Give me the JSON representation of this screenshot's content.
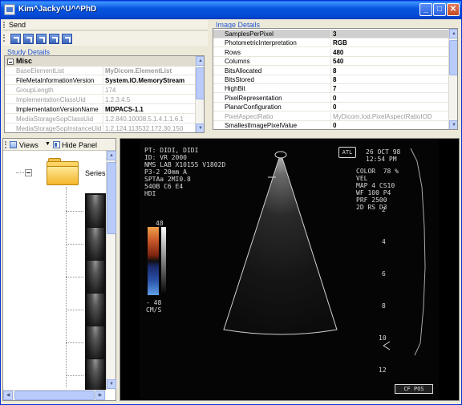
{
  "window": {
    "title": "Kim^Jacky^U^^PhD",
    "min_icon": "minimize-icon",
    "max_icon": "maximize-icon",
    "close_icon": "close-icon"
  },
  "toolbar": {
    "send_label": "Send",
    "icon_count": 5
  },
  "study_details": {
    "label": "Study Details",
    "category": "Misc",
    "rows": [
      {
        "name": "BaseElementList",
        "value": "MyDicom.ElementList",
        "name_style": "gray",
        "value_style": "gray-bold"
      },
      {
        "name": "FileMetaInformationVersion",
        "value": "System.IO.MemoryStream",
        "name_style": "normal",
        "value_style": "bold"
      },
      {
        "name": "GroupLength",
        "value": "174",
        "name_style": "gray",
        "value_style": "gray"
      },
      {
        "name": "ImplementationClassUid",
        "value": "1.2.3.4.5",
        "name_style": "gray",
        "value_style": "gray"
      },
      {
        "name": "ImplementationVersionName",
        "value": "MDPACS-1.1",
        "name_style": "normal",
        "value_style": "bold"
      },
      {
        "name": "MediaStorageSopClassUid",
        "value": "1.2.840.10008.5.1.4.1.1.6.1",
        "name_style": "gray",
        "value_style": "gray"
      },
      {
        "name": "MediaStorageSopInstanceUid",
        "value": "1.2.124.113532.172.30.150",
        "name_style": "gray",
        "value_style": "gray"
      }
    ]
  },
  "image_details": {
    "label": "Image Details",
    "rows": [
      {
        "name": "SamplesPerPixel",
        "value": "3",
        "selected": true
      },
      {
        "name": "PhotometricInterpretation",
        "value": "RGB"
      },
      {
        "name": "Rows",
        "value": "480"
      },
      {
        "name": "Columns",
        "value": "540"
      },
      {
        "name": "BitsAllocated",
        "value": "8"
      },
      {
        "name": "BitsStored",
        "value": "8"
      },
      {
        "name": "HighBit",
        "value": "7"
      },
      {
        "name": "PixelRepresentation",
        "value": "0"
      },
      {
        "name": "PlanarConfiguration",
        "value": "0"
      },
      {
        "name": "PixelAspectRatio",
        "value": "MyDicom.Iod.PixelAspectRatioIOD",
        "gray": true
      },
      {
        "name": "SmallestImagePixelValue",
        "value": "0"
      }
    ]
  },
  "left_panel": {
    "views_label": "Views",
    "hide_panel_label": "Hide Panel",
    "series_label": "Series",
    "thumbnail_count": 6
  },
  "viewer": {
    "header_left": "PT: DIDI, DIDI\nID: VR 2000\nNMS LAB X10155 V1802D\nP3-2 20mm A\nSPTAa 2MI0.8\n540B C6 E4\nHDI",
    "header_right": "26 OCT 98\n12:54 PM",
    "settings": "COLOR  78 %\nVEL\nMAP 4 CS10\nWF 100 P4\nPRF 2500\n2D RS D3",
    "logo": "ATL",
    "scale_top": "48",
    "scale_bottom": "- 48\nCM/S",
    "depth_marks": [
      "2",
      "4",
      "6",
      "8",
      "10",
      "12"
    ],
    "footer_badge": "CF POS"
  }
}
